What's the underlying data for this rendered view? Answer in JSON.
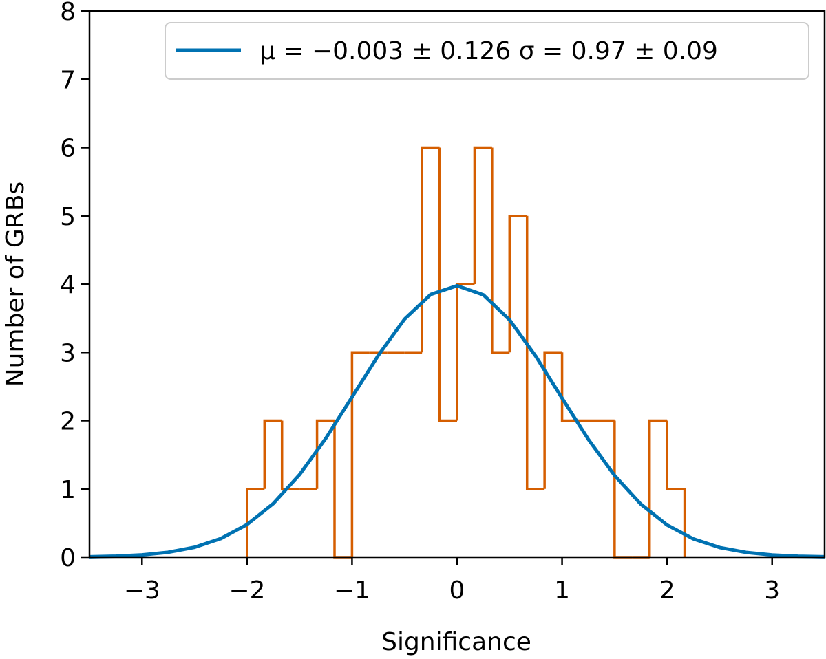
{
  "chart_data": {
    "type": "histogram",
    "xlabel": "Significance",
    "ylabel": "Number of GRBs",
    "xlim": [
      -3.5,
      3.5
    ],
    "ylim": [
      0,
      8
    ],
    "xticks": [
      {
        "value": -3,
        "label": "−3"
      },
      {
        "value": -2,
        "label": "−2"
      },
      {
        "value": -1,
        "label": "−1"
      },
      0,
      1,
      2,
      3
    ],
    "yticks": [
      0,
      1,
      2,
      3,
      4,
      5,
      6,
      7,
      8
    ],
    "legend": "upper right",
    "bins": [
      -2,
      -1.8333,
      -1.6667,
      -1.5,
      -1.3333,
      -1.1667,
      -1,
      -0.8333,
      -0.6667,
      -0.5,
      -0.3333,
      -0.1667,
      0,
      0.1667,
      0.3333,
      0.5,
      0.6667,
      0.8333,
      1,
      1.1667,
      1.3333,
      1.5,
      1.6667,
      1.8333,
      2,
      2.1667
    ],
    "counts": [
      1,
      2,
      1,
      1,
      2,
      0,
      3,
      3,
      3,
      3,
      6,
      2,
      4,
      6,
      3,
      5,
      1,
      3,
      2,
      2,
      2,
      0,
      0,
      2,
      1
    ],
    "hist_color": "#d55e00",
    "series": [
      {
        "name": "μ = −0.003 ± 0.126  σ = 0.97 ± 0.09",
        "type": "line",
        "color": "#0072b2",
        "x": [
          -3.5,
          -3.25,
          -3,
          -2.75,
          -2.5,
          -2.25,
          -2,
          -1.75,
          -1.5,
          -1.25,
          -1,
          -0.75,
          -0.5,
          -0.25,
          0,
          0.25,
          0.5,
          0.75,
          1,
          1.25,
          1.5,
          1.75,
          2,
          2.25,
          2.5,
          2.75,
          3,
          3.25,
          3.5
        ],
        "values": [
          0.006,
          0.015,
          0.034,
          0.072,
          0.145,
          0.272,
          0.478,
          0.785,
          1.209,
          1.74,
          2.345,
          2.956,
          3.487,
          3.849,
          3.976,
          3.843,
          3.476,
          2.942,
          2.33,
          1.726,
          1.197,
          0.777,
          0.472,
          0.268,
          0.142,
          0.071,
          0.033,
          0.014,
          0.006
        ]
      }
    ]
  }
}
